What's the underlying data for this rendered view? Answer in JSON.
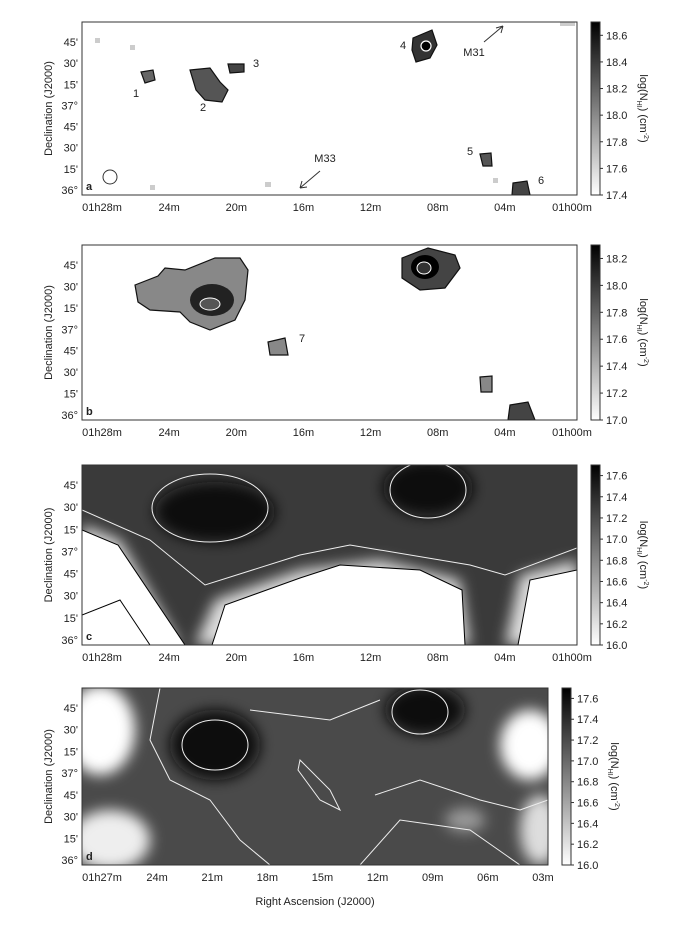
{
  "chart_data": [
    {
      "type": "heatmap",
      "panel_label": "a",
      "ylabel": "Declination (J2000)",
      "x_labels": [
        "01h28m",
        "24m",
        "20m",
        "16m",
        "12m",
        "08m",
        "04m",
        "01h00m"
      ],
      "y_labels": [
        "45'",
        "30'",
        "15'",
        "37°",
        "45'",
        "30'",
        "15'",
        "36°"
      ],
      "clim": [
        17.4,
        18.7
      ],
      "cticks": [
        17.4,
        17.6,
        17.8,
        {
          "value": 18,
          "label": "18.0"
        },
        18.2,
        18.4,
        18.6
      ],
      "colorbar_label": [
        "log(N",
        "HI",
        ")  (cm",
        "-2",
        ")"
      ],
      "annotations": [
        "1",
        "2",
        "3",
        "4",
        "5",
        "6",
        "M31",
        "M33"
      ]
    },
    {
      "type": "heatmap",
      "panel_label": "b",
      "ylabel": "Declination (J2000)",
      "x_labels": [
        "01h28m",
        "24m",
        "20m",
        "16m",
        "12m",
        "08m",
        "04m",
        "01h00m"
      ],
      "y_labels": [
        "45'",
        "30'",
        "15'",
        "37°",
        "45'",
        "30'",
        "15'",
        "36°"
      ],
      "clim": [
        17.0,
        18.3
      ],
      "cticks": [
        {
          "value": 17,
          "label": "17.0"
        },
        17.2,
        17.4,
        17.6,
        17.8,
        {
          "value": 18,
          "label": "18.0"
        },
        18.2
      ],
      "colorbar_label": [
        "log(N",
        "HI",
        ")  (cm",
        "-2",
        ")"
      ],
      "annotations": [
        "7"
      ]
    },
    {
      "type": "heatmap",
      "panel_label": "c",
      "ylabel": "Declination (J2000)",
      "x_labels": [
        "01h28m",
        "24m",
        "20m",
        "16m",
        "12m",
        "08m",
        "04m",
        "01h00m"
      ],
      "y_labels": [
        "45'",
        "30'",
        "15'",
        "37°",
        "45'",
        "30'",
        "15'",
        "36°"
      ],
      "clim": [
        16.0,
        17.7
      ],
      "cticks": [
        {
          "value": 16,
          "label": "16.0"
        },
        16.2,
        16.4,
        16.6,
        16.8,
        {
          "value": 17,
          "label": "17.0"
        },
        17.2,
        17.4,
        17.6
      ],
      "colorbar_label": [
        "log(N",
        "HI",
        ")  (cm",
        "-2",
        ")"
      ],
      "annotations": []
    },
    {
      "type": "heatmap",
      "panel_label": "d",
      "ylabel": "Declination (J2000)",
      "xlabel": "Right Ascension (J2000)",
      "x_labels": [
        "01h27m",
        "24m",
        "21m",
        "18m",
        "15m",
        "12m",
        "09m",
        "06m",
        "03m"
      ],
      "y_labels": [
        "45'",
        "30'",
        "15'",
        "37°",
        "45'",
        "30'",
        "15'",
        "36°"
      ],
      "clim": [
        16.0,
        17.7
      ],
      "cticks": [
        {
          "value": 16,
          "label": "16.0"
        },
        16.2,
        16.4,
        16.6,
        16.8,
        {
          "value": 17,
          "label": "17.0"
        },
        17.2,
        17.4,
        17.6
      ],
      "colorbar_label": [
        "log(N",
        "HI",
        ")  (cm",
        "-2",
        ")"
      ],
      "annotations": []
    }
  ]
}
